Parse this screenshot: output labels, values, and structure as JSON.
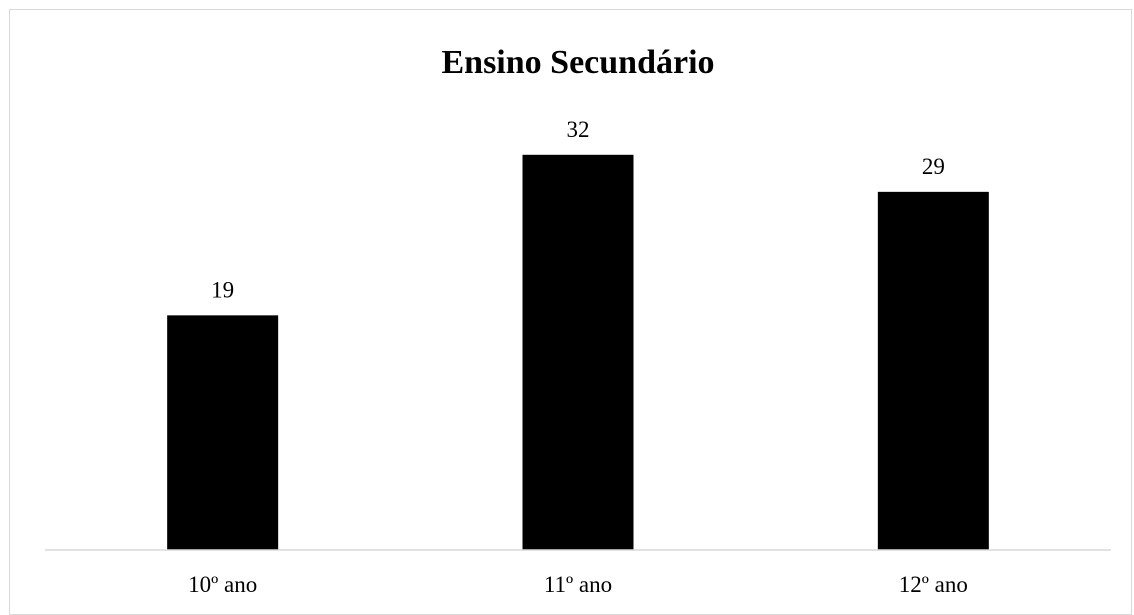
{
  "chart_data": {
    "type": "bar",
    "title": "Ensino Secundário",
    "categories": [
      "10º ano",
      "11º ano",
      "12º ano"
    ],
    "values": [
      19,
      32,
      29
    ],
    "data_labels": [
      "19",
      "32",
      "29"
    ],
    "xlabel": "",
    "ylabel": "",
    "ylim": [
      0,
      35
    ],
    "grid": false,
    "legend": "none",
    "bar_color": "#000000",
    "axis_color": "#d9d9d9"
  }
}
